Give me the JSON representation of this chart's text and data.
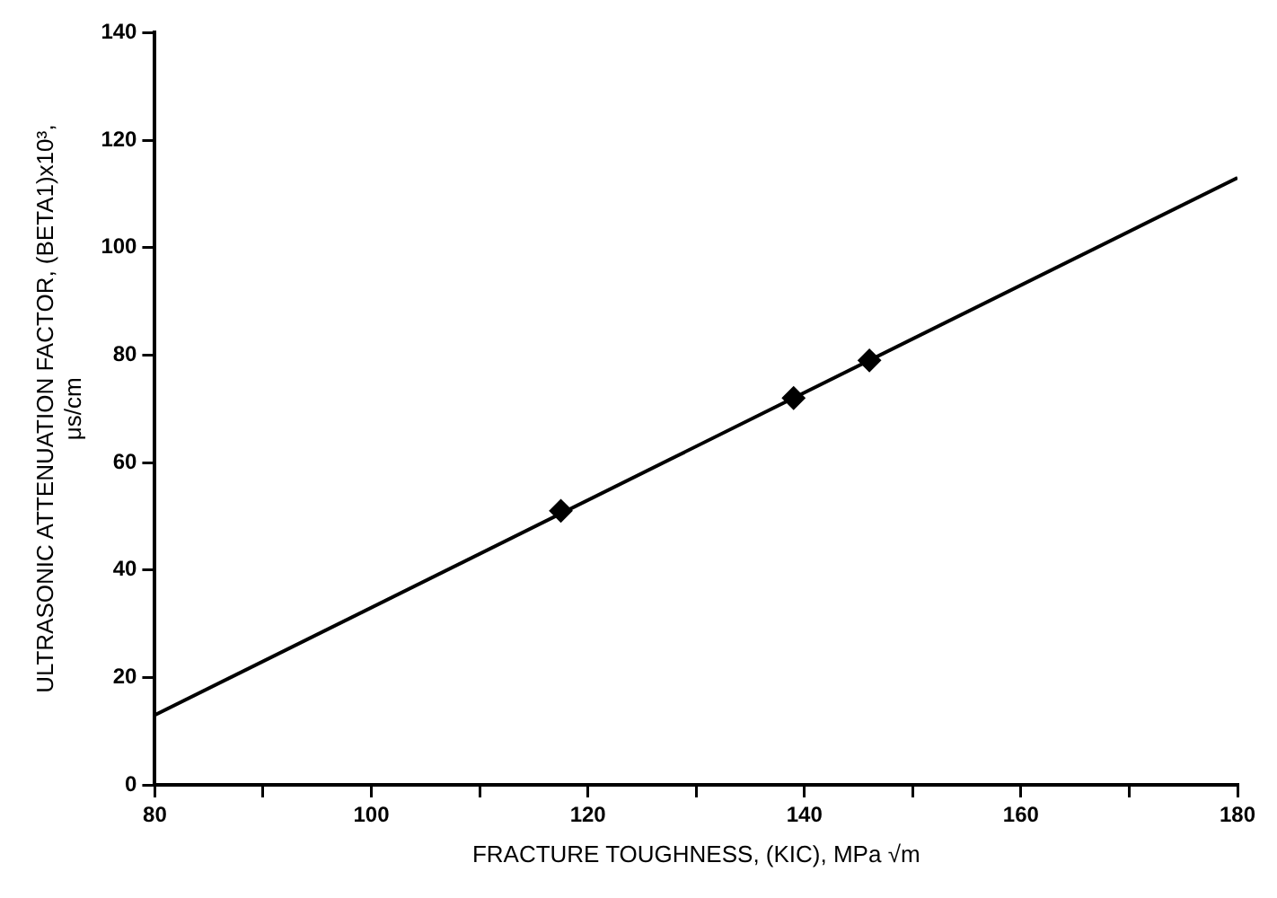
{
  "chart_data": {
    "type": "scatter",
    "xlabel": "FRACTURE TOUGHNESS, (KIC), MPa √m",
    "ylabel": "ULTRASONIC ATTENUATION FACTOR, (BETA1)x10³,\nμs/cm",
    "xlim": [
      80,
      180
    ],
    "xticks": [
      80,
      {
        "value": 90,
        "label": null
      },
      100,
      {
        "value": 110,
        "label": null
      },
      120,
      {
        "value": 130,
        "label": null
      },
      140,
      {
        "value": 150,
        "label": null
      },
      160,
      {
        "value": 170,
        "label": null
      },
      180
    ],
    "ylim": [
      0,
      140
    ],
    "yticks": [
      0,
      20,
      40,
      60,
      80,
      100,
      120,
      140
    ],
    "grid": false,
    "legend": false,
    "marker": "diamond",
    "series": [
      {
        "type": "scatter",
        "color": "#000000",
        "x": [
          117.5,
          139,
          146
        ],
        "values": [
          51,
          72,
          79
        ]
      },
      {
        "type": "line",
        "color": "#000000",
        "marker": "none",
        "line_style": "solid",
        "x": [
          80,
          180
        ],
        "values": [
          13,
          113
        ]
      }
    ]
  }
}
